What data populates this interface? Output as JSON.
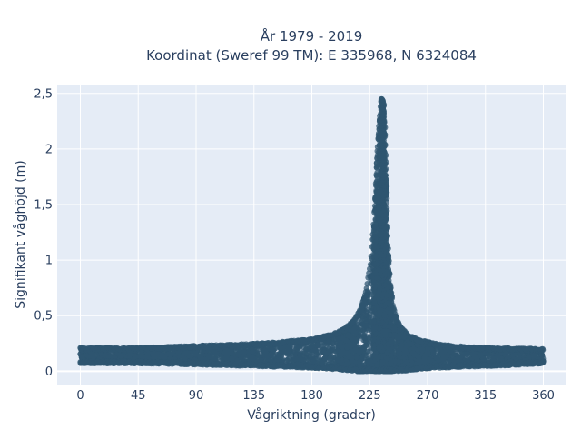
{
  "chart_data": {
    "type": "scatter",
    "title_line1": "År 1979 - 2019",
    "title_line2": "Koordinat (Sweref 99 TM): E 335968, N 6324084",
    "xlabel": "Vågriktning (grader)",
    "ylabel": "Signifikant våghöjd (m)",
    "xlim": [
      -18,
      378
    ],
    "ylim": [
      -0.12,
      2.58
    ],
    "x_ticks": [
      {
        "value": 0,
        "label": "0"
      },
      {
        "value": 45,
        "label": "45"
      },
      {
        "value": 90,
        "label": "90"
      },
      {
        "value": 135,
        "label": "135"
      },
      {
        "value": 180,
        "label": "180"
      },
      {
        "value": 225,
        "label": "225"
      },
      {
        "value": 270,
        "label": "270"
      },
      {
        "value": 315,
        "label": "315"
      },
      {
        "value": 360,
        "label": "360"
      }
    ],
    "y_ticks": [
      {
        "value": 0,
        "label": "0"
      },
      {
        "value": 0.5,
        "label": "0,5"
      },
      {
        "value": 1,
        "label": "1"
      },
      {
        "value": 1.5,
        "label": "1,5"
      },
      {
        "value": 2,
        "label": "2"
      },
      {
        "value": 2.5,
        "label": "2,5"
      }
    ],
    "grid": true,
    "colors": {
      "marker": "#2f5570",
      "plot_bg": "#e5ecf6",
      "grid": "#ffffff",
      "text": "#2a3f5f"
    },
    "envelope": {
      "x": [
        0,
        45,
        90,
        120,
        150,
        180,
        195,
        205,
        212,
        218,
        222,
        226,
        229,
        231,
        233,
        234,
        235,
        236,
        237,
        238,
        239,
        241,
        243,
        246,
        250,
        256,
        265,
        280,
        300,
        330,
        360
      ],
      "y_max": [
        0.21,
        0.21,
        0.23,
        0.24,
        0.26,
        0.29,
        0.33,
        0.38,
        0.45,
        0.56,
        0.72,
        1.0,
        1.5,
        2.0,
        2.35,
        2.45,
        2.4,
        2.3,
        2.2,
        1.8,
        1.2,
        0.8,
        0.6,
        0.47,
        0.39,
        0.32,
        0.28,
        0.24,
        0.22,
        0.21,
        0.2
      ],
      "y_min": [
        0.07,
        0.07,
        0.06,
        0.05,
        0.04,
        0.03,
        0.02,
        0.01,
        0.0,
        0.0,
        0.0,
        0.0,
        0.0,
        0.0,
        0.0,
        0.0,
        0.0,
        0.0,
        0.0,
        0.0,
        0.0,
        0.0,
        0.0,
        0.0,
        0.0,
        0.01,
        0.02,
        0.03,
        0.04,
        0.05,
        0.07
      ]
    },
    "peak": {
      "x": 235,
      "y": 2.45
    }
  }
}
